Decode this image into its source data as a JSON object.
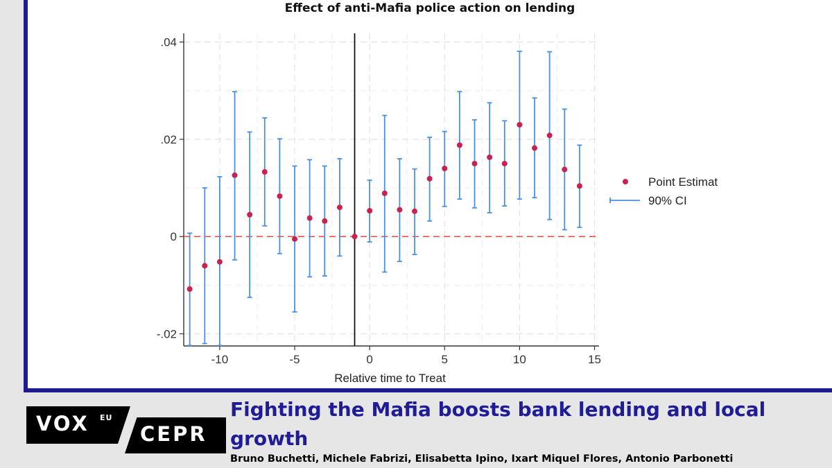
{
  "article": {
    "headline": "Fighting the Mafia boosts bank lending and local growth",
    "authors": "Bruno Buchetti, Michele Fabrizi, Elisabetta Ipino, Ixart Miquel Flores, Antonio Parbonetti"
  },
  "logos": {
    "vox": "VOX",
    "eu": "EU",
    "cepr": "CEPR"
  },
  "colors": {
    "frame": "#1d1b8f",
    "headline": "#1f1c96",
    "point": "#c8234f",
    "ci": "#4a90e2",
    "zero_line": "#e05a4a"
  },
  "chart_data": {
    "type": "scatter",
    "title": "Effect of anti-Mafia police action on lending",
    "xlabel": "Relative time to Treat",
    "ylabel": "",
    "xlim": [
      -12.4,
      15.3
    ],
    "ylim": [
      -0.0225,
      0.0418
    ],
    "xticks": [
      -10,
      -5,
      0,
      5,
      10,
      15
    ],
    "xtick_labels": [
      "-10",
      "-5",
      "0",
      "5",
      "10",
      "15"
    ],
    "yticks": [
      -0.02,
      0,
      0.02,
      0.04
    ],
    "ytick_labels": [
      "-.02",
      "0",
      ".02",
      ".04"
    ],
    "vertical_line_x": -1,
    "reference_line_y": 0,
    "grid": true,
    "legend": {
      "position": "right",
      "entries": [
        "Point Estimat",
        "90% CI"
      ]
    },
    "series": [
      {
        "name": "Point Estimat",
        "x": [
          -12,
          -11,
          -10,
          -9,
          -8,
          -7,
          -6,
          -5,
          -4,
          -3,
          -2,
          -1,
          0,
          1,
          2,
          3,
          4,
          5,
          6,
          7,
          8,
          9,
          10,
          11,
          12,
          13,
          14
        ],
        "values": [
          -0.0108,
          -0.006,
          -0.0052,
          0.0126,
          0.0045,
          0.0133,
          0.0083,
          -0.0005,
          0.0038,
          0.0032,
          0.006,
          0.0,
          0.0053,
          0.0089,
          0.0055,
          0.0052,
          0.0119,
          0.014,
          0.0188,
          0.015,
          0.0163,
          0.015,
          0.023,
          0.0182,
          0.0208,
          0.0138,
          0.0104
        ]
      },
      {
        "name": "90% CI",
        "lower": [
          -0.0224,
          -0.022,
          -0.0224,
          -0.0048,
          -0.0125,
          0.0022,
          -0.0035,
          -0.0155,
          -0.0083,
          -0.0081,
          -0.004,
          null,
          -0.0011,
          -0.0073,
          -0.0051,
          -0.0037,
          0.0032,
          0.0062,
          0.0077,
          0.0059,
          0.0049,
          0.0063,
          0.0077,
          0.008,
          0.0035,
          0.0014,
          0.0019
        ],
        "upper": [
          0.0007,
          0.01,
          0.0123,
          0.0298,
          0.0215,
          0.0244,
          0.0201,
          0.0145,
          0.0158,
          0.0145,
          0.016,
          null,
          0.0116,
          0.0249,
          0.016,
          0.0139,
          0.0204,
          0.0216,
          0.0298,
          0.024,
          0.0275,
          0.0238,
          0.0381,
          0.0285,
          0.038,
          0.0262,
          0.0188
        ]
      }
    ]
  }
}
